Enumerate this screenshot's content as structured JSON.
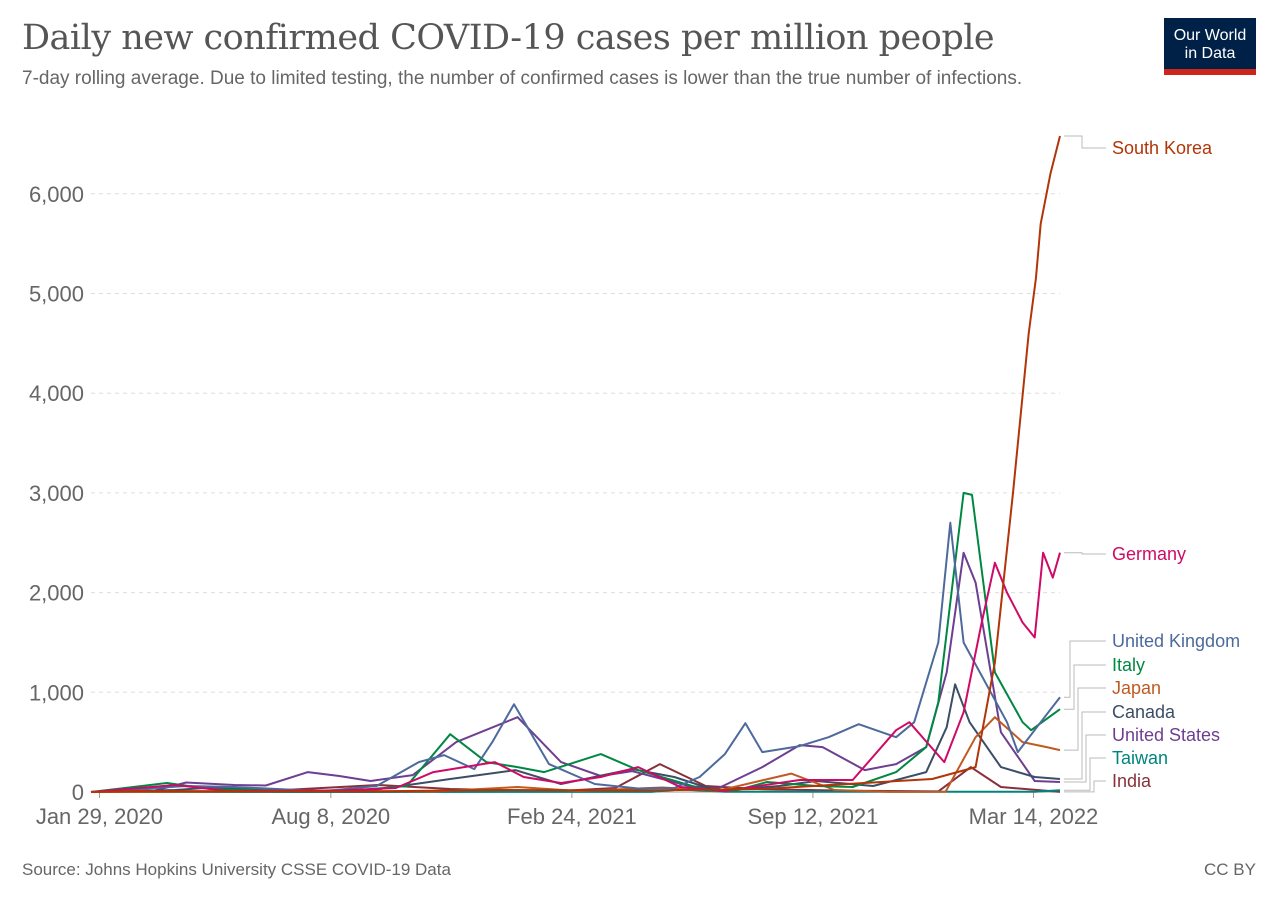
{
  "header": {
    "title": "Daily new confirmed COVID-19 cases per million people",
    "subtitle": "7-day rolling average. Due to limited testing, the number of confirmed cases is lower than the true number of infections.",
    "logo_line1": "Our World",
    "logo_line2": "in Data"
  },
  "footer": {
    "source": "Source: Johns Hopkins University CSSE COVID-19 Data",
    "license": "CC BY"
  },
  "chart_data": {
    "type": "line",
    "title": "Daily new confirmed COVID-19 cases per million people",
    "xlabel": "",
    "ylabel": "",
    "x_range": [
      "2020-01-22",
      "2022-04-05"
    ],
    "ylim": [
      0,
      6600
    ],
    "yticks": [
      0,
      1000,
      2000,
      3000,
      4000,
      5000,
      6000
    ],
    "ytick_labels": [
      "0",
      "1,000",
      "2,000",
      "3,000",
      "4,000",
      "5,000",
      "6,000"
    ],
    "xticks": [
      {
        "date": "2020-01-29",
        "label": "Jan 29, 2020"
      },
      {
        "date": "2020-08-08",
        "label": "Aug 8, 2020"
      },
      {
        "date": "2021-02-24",
        "label": "Feb 24, 2021"
      },
      {
        "date": "2021-09-12",
        "label": "Sep 12, 2021"
      },
      {
        "date": "2022-03-14",
        "label": "Mar 14, 2022"
      }
    ],
    "grid": true,
    "legend": "right-end-labels",
    "series": [
      {
        "name": "India",
        "color": "#883039",
        "points": [
          [
            "2020-01-22",
            0
          ],
          [
            "2020-04-15",
            2
          ],
          [
            "2020-06-15",
            10
          ],
          [
            "2020-09-16",
            70
          ],
          [
            "2020-11-15",
            30
          ],
          [
            "2021-02-10",
            8
          ],
          [
            "2021-04-01",
            40
          ],
          [
            "2021-05-08",
            280
          ],
          [
            "2021-06-15",
            60
          ],
          [
            "2021-08-01",
            28
          ],
          [
            "2021-10-15",
            12
          ],
          [
            "2021-12-25",
            6
          ],
          [
            "2022-01-21",
            250
          ],
          [
            "2022-02-15",
            50
          ],
          [
            "2022-04-05",
            1
          ]
        ]
      },
      {
        "name": "Taiwan",
        "color": "#00847e",
        "points": [
          [
            "2020-01-22",
            0
          ],
          [
            "2021-05-01",
            1
          ],
          [
            "2021-05-25",
            25
          ],
          [
            "2021-07-01",
            2
          ],
          [
            "2022-03-15",
            2
          ],
          [
            "2022-04-05",
            18
          ]
        ]
      },
      {
        "name": "United States",
        "color": "#6d3e91",
        "points": [
          [
            "2020-01-22",
            0
          ],
          [
            "2020-03-15",
            15
          ],
          [
            "2020-04-10",
            95
          ],
          [
            "2020-05-20",
            70
          ],
          [
            "2020-06-15",
            65
          ],
          [
            "2020-07-20",
            200
          ],
          [
            "2020-08-15",
            160
          ],
          [
            "2020-09-10",
            110
          ],
          [
            "2020-10-15",
            170
          ],
          [
            "2020-11-20",
            500
          ],
          [
            "2021-01-10",
            750
          ],
          [
            "2021-02-15",
            300
          ],
          [
            "2021-03-20",
            160
          ],
          [
            "2021-04-15",
            210
          ],
          [
            "2021-06-01",
            60
          ],
          [
            "2021-06-25",
            35
          ],
          [
            "2021-08-01",
            250
          ],
          [
            "2021-09-01",
            470
          ],
          [
            "2021-09-20",
            450
          ],
          [
            "2021-10-25",
            220
          ],
          [
            "2021-11-20",
            280
          ],
          [
            "2021-12-15",
            450
          ],
          [
            "2022-01-01",
            1200
          ],
          [
            "2022-01-15",
            2400
          ],
          [
            "2022-01-25",
            2100
          ],
          [
            "2022-02-15",
            600
          ],
          [
            "2022-03-15",
            110
          ],
          [
            "2022-04-05",
            100
          ]
        ]
      },
      {
        "name": "Canada",
        "color": "#38aaba",
        "line_color": "#3c4e66",
        "points": [
          [
            "2020-01-22",
            0
          ],
          [
            "2020-04-01",
            20
          ],
          [
            "2020-05-01",
            45
          ],
          [
            "2020-07-01",
            8
          ],
          [
            "2020-09-15",
            25
          ],
          [
            "2020-11-15",
            130
          ],
          [
            "2021-01-08",
            220
          ],
          [
            "2021-02-15",
            80
          ],
          [
            "2021-04-15",
            230
          ],
          [
            "2021-05-20",
            150
          ],
          [
            "2021-06-25",
            10
          ],
          [
            "2021-08-15",
            60
          ],
          [
            "2021-09-15",
            110
          ],
          [
            "2021-11-01",
            60
          ],
          [
            "2021-12-15",
            200
          ],
          [
            "2022-01-01",
            650
          ],
          [
            "2022-01-08",
            1080
          ],
          [
            "2022-01-20",
            700
          ],
          [
            "2022-02-15",
            250
          ],
          [
            "2022-03-15",
            150
          ],
          [
            "2022-04-05",
            130
          ]
        ]
      },
      {
        "name": "Japan",
        "color": "#c15065",
        "line_color": "#c15a22",
        "points": [
          [
            "2020-01-22",
            0
          ],
          [
            "2020-04-15",
            3
          ],
          [
            "2020-08-05",
            9
          ],
          [
            "2020-11-01",
            5
          ],
          [
            "2021-01-10",
            50
          ],
          [
            "2021-03-01",
            10
          ],
          [
            "2021-05-10",
            45
          ],
          [
            "2021-06-25",
            12
          ],
          [
            "2021-08-25",
            185
          ],
          [
            "2021-09-30",
            20
          ],
          [
            "2021-11-15",
            1
          ],
          [
            "2021-12-31",
            2
          ],
          [
            "2022-01-25",
            550
          ],
          [
            "2022-02-10",
            750
          ],
          [
            "2022-03-05",
            500
          ],
          [
            "2022-03-25",
            450
          ],
          [
            "2022-04-05",
            420
          ]
        ]
      },
      {
        "name": "Italy",
        "color": "#18470f",
        "line_color": "#008843",
        "points": [
          [
            "2020-01-22",
            0
          ],
          [
            "2020-03-25",
            90
          ],
          [
            "2020-04-30",
            30
          ],
          [
            "2020-07-15",
            4
          ],
          [
            "2020-09-01",
            20
          ],
          [
            "2020-10-10",
            60
          ],
          [
            "2020-11-15",
            580
          ],
          [
            "2020-12-15",
            300
          ],
          [
            "2021-01-10",
            250
          ],
          [
            "2021-02-01",
            200
          ],
          [
            "2021-03-20",
            380
          ],
          [
            "2021-04-20",
            220
          ],
          [
            "2021-06-15",
            20
          ],
          [
            "2021-07-10",
            15
          ],
          [
            "2021-08-05",
            100
          ],
          [
            "2021-09-15",
            60
          ],
          [
            "2021-10-15",
            50
          ],
          [
            "2021-11-20",
            200
          ],
          [
            "2021-12-15",
            450
          ],
          [
            "2021-12-25",
            900
          ],
          [
            "2022-01-05",
            2000
          ],
          [
            "2022-01-15",
            3000
          ],
          [
            "2022-01-22",
            2980
          ],
          [
            "2022-02-10",
            1200
          ],
          [
            "2022-03-05",
            700
          ],
          [
            "2022-03-12",
            620
          ],
          [
            "2022-04-05",
            830
          ]
        ]
      },
      {
        "name": "United Kingdom",
        "color": "#4c6a9c",
        "points": [
          [
            "2020-01-22",
            0
          ],
          [
            "2020-04-10",
            60
          ],
          [
            "2020-05-20",
            50
          ],
          [
            "2020-08-01",
            8
          ],
          [
            "2020-09-15",
            60
          ],
          [
            "2020-10-20",
            300
          ],
          [
            "2020-11-10",
            370
          ],
          [
            "2020-12-05",
            230
          ],
          [
            "2020-12-20",
            500
          ],
          [
            "2021-01-07",
            880
          ],
          [
            "2021-02-05",
            280
          ],
          [
            "2021-03-15",
            80
          ],
          [
            "2021-04-20",
            35
          ],
          [
            "2021-05-20",
            40
          ],
          [
            "2021-06-10",
            150
          ],
          [
            "2021-07-01",
            380
          ],
          [
            "2021-07-18",
            690
          ],
          [
            "2021-08-01",
            400
          ],
          [
            "2021-09-01",
            460
          ],
          [
            "2021-09-25",
            550
          ],
          [
            "2021-10-20",
            680
          ],
          [
            "2021-11-20",
            550
          ],
          [
            "2021-12-05",
            700
          ],
          [
            "2021-12-25",
            1500
          ],
          [
            "2022-01-04",
            2700
          ],
          [
            "2022-01-15",
            1500
          ],
          [
            "2022-02-20",
            700
          ],
          [
            "2022-03-01",
            400
          ],
          [
            "2022-03-20",
            700
          ],
          [
            "2022-04-05",
            950
          ]
        ]
      },
      {
        "name": "Germany",
        "color": "#d73c50",
        "line_color": "#cf0a66",
        "points": [
          [
            "2020-01-22",
            0
          ],
          [
            "2020-04-01",
            70
          ],
          [
            "2020-05-15",
            10
          ],
          [
            "2020-08-15",
            15
          ],
          [
            "2020-10-01",
            40
          ],
          [
            "2020-11-01",
            200
          ],
          [
            "2020-12-22",
            300
          ],
          [
            "2021-01-15",
            150
          ],
          [
            "2021-02-15",
            90
          ],
          [
            "2021-03-20",
            150
          ],
          [
            "2021-04-20",
            250
          ],
          [
            "2021-05-25",
            50
          ],
          [
            "2021-07-01",
            10
          ],
          [
            "2021-09-01",
            120
          ],
          [
            "2021-10-15",
            120
          ],
          [
            "2021-11-20",
            620
          ],
          [
            "2021-12-01",
            700
          ],
          [
            "2021-12-30",
            300
          ],
          [
            "2022-01-15",
            800
          ],
          [
            "2022-01-30",
            1700
          ],
          [
            "2022-02-10",
            2300
          ],
          [
            "2022-02-20",
            2000
          ],
          [
            "2022-03-05",
            1700
          ],
          [
            "2022-03-15",
            1550
          ],
          [
            "2022-03-22",
            2400
          ],
          [
            "2022-03-30",
            2150
          ],
          [
            "2022-04-05",
            2400
          ]
        ]
      },
      {
        "name": "South Korea",
        "color": "#a2559c",
        "line_color": "#b13507",
        "points": [
          [
            "2020-01-22",
            0
          ],
          [
            "2020-03-01",
            10
          ],
          [
            "2020-09-01",
            5
          ],
          [
            "2020-12-25",
            20
          ],
          [
            "2021-04-20",
            15
          ],
          [
            "2021-08-01",
            30
          ],
          [
            "2021-12-20",
            130
          ],
          [
            "2022-01-25",
            250
          ],
          [
            "2022-02-10",
            1300
          ],
          [
            "2022-02-25",
            3000
          ],
          [
            "2022-03-10",
            4600
          ],
          [
            "2022-03-16",
            5150
          ],
          [
            "2022-03-20",
            5700
          ],
          [
            "2022-03-28",
            6200
          ],
          [
            "2022-04-05",
            6580
          ]
        ]
      }
    ],
    "end_labels": [
      {
        "name": "South Korea",
        "color": "#b13507"
      },
      {
        "name": "Germany",
        "color": "#cf0a66"
      },
      {
        "name": "United Kingdom",
        "color": "#4c6a9c"
      },
      {
        "name": "Italy",
        "color": "#008843"
      },
      {
        "name": "Japan",
        "color": "#c15a22"
      },
      {
        "name": "Canada",
        "color": "#3c4e66"
      },
      {
        "name": "United States",
        "color": "#6d3e91"
      },
      {
        "name": "Taiwan",
        "color": "#00847e"
      },
      {
        "name": "India",
        "color": "#883039"
      }
    ]
  }
}
